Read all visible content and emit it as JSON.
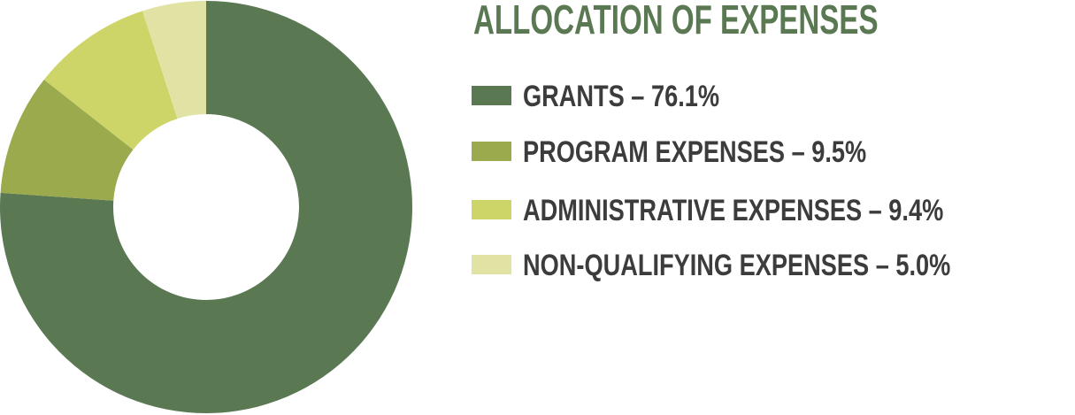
{
  "chart_data": {
    "type": "donut",
    "title": "ALLOCATION OF EXPENSES",
    "categories": [
      "GRANTS – 76.1%",
      "PROGRAM EXPENSES – 9.5%",
      "ADMINISTRATIVE EXPENSES – 9.4%",
      "NON-QUALIFYING EXPENSES – 5.0%"
    ],
    "values": [
      76.1,
      9.5,
      9.4,
      5.0
    ],
    "colors": [
      "#5a7953",
      "#9aaa4d",
      "#ced568",
      "#e1e3a5"
    ]
  }
}
